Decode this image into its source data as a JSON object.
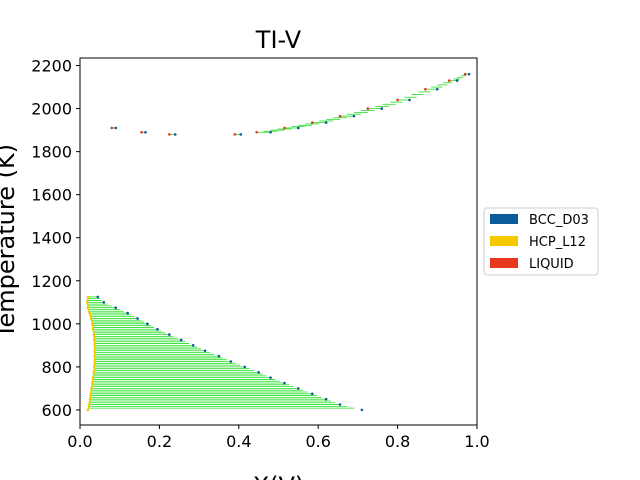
{
  "chart_data": {
    "type": "scatter",
    "title": "TI-V",
    "xlabel": "X(V)",
    "ylabel": "Temperature (K)",
    "xlim": [
      0.0,
      1.0
    ],
    "ylim": [
      530,
      2235
    ],
    "xticks": [
      0.0,
      0.2,
      0.4,
      0.6,
      0.8,
      1.0
    ],
    "xtick_labels": [
      "0.0",
      "0.2",
      "0.4",
      "0.6",
      "0.8",
      "1.0"
    ],
    "yticks": [
      600,
      800,
      1000,
      1200,
      1400,
      1600,
      1800,
      2000,
      2200
    ],
    "ytick_labels": [
      "600",
      "800",
      "1000",
      "1200",
      "1400",
      "1600",
      "1800",
      "2000",
      "2200"
    ],
    "grid": false,
    "legend_position": "outside-right",
    "legend": [
      {
        "label": "BCC_D03",
        "color": "#0a5a9c"
      },
      {
        "label": "HCP_L12",
        "color": "#f5c800"
      },
      {
        "label": "LIQUID",
        "color": "#e8391e"
      }
    ],
    "tieline_color": "#22dd22",
    "series": [
      {
        "name": "BCC_D03",
        "color": "#0a5a9c",
        "points": [
          [
            0.045,
            1125
          ],
          [
            0.06,
            1100
          ],
          [
            0.09,
            1075
          ],
          [
            0.12,
            1050
          ],
          [
            0.145,
            1025
          ],
          [
            0.17,
            1000
          ],
          [
            0.195,
            975
          ],
          [
            0.225,
            950
          ],
          [
            0.255,
            925
          ],
          [
            0.285,
            900
          ],
          [
            0.315,
            875
          ],
          [
            0.35,
            850
          ],
          [
            0.38,
            825
          ],
          [
            0.415,
            800
          ],
          [
            0.45,
            775
          ],
          [
            0.48,
            750
          ],
          [
            0.515,
            725
          ],
          [
            0.55,
            700
          ],
          [
            0.585,
            675
          ],
          [
            0.62,
            650
          ],
          [
            0.655,
            625
          ],
          [
            0.71,
            600
          ],
          [
            0.09,
            1910
          ],
          [
            0.165,
            1890
          ],
          [
            0.24,
            1880
          ],
          [
            0.405,
            1880
          ],
          [
            0.48,
            1890
          ],
          [
            0.55,
            1910
          ],
          [
            0.62,
            1935
          ],
          [
            0.69,
            1965
          ],
          [
            0.76,
            2000
          ],
          [
            0.83,
            2040
          ],
          [
            0.9,
            2090
          ],
          [
            0.95,
            2130
          ],
          [
            0.98,
            2160
          ]
        ]
      },
      {
        "name": "HCP_L12",
        "color": "#f5c800",
        "points": [
          [
            0.02,
            1125
          ],
          [
            0.018,
            1100
          ],
          [
            0.02,
            1075
          ],
          [
            0.024,
            1050
          ],
          [
            0.028,
            1025
          ],
          [
            0.031,
            1000
          ],
          [
            0.033,
            975
          ],
          [
            0.035,
            950
          ],
          [
            0.036,
            925
          ],
          [
            0.037,
            900
          ],
          [
            0.037,
            875
          ],
          [
            0.037,
            850
          ],
          [
            0.037,
            825
          ],
          [
            0.036,
            800
          ],
          [
            0.035,
            775
          ],
          [
            0.033,
            750
          ],
          [
            0.031,
            725
          ],
          [
            0.029,
            700
          ],
          [
            0.027,
            675
          ],
          [
            0.025,
            650
          ],
          [
            0.023,
            625
          ],
          [
            0.02,
            600
          ]
        ]
      },
      {
        "name": "LIQUID",
        "color": "#e8391e",
        "points": [
          [
            0.08,
            1910
          ],
          [
            0.155,
            1890
          ],
          [
            0.225,
            1880
          ],
          [
            0.39,
            1880
          ],
          [
            0.445,
            1890
          ],
          [
            0.515,
            1910
          ],
          [
            0.585,
            1935
          ],
          [
            0.655,
            1965
          ],
          [
            0.725,
            2000
          ],
          [
            0.8,
            2040
          ],
          [
            0.87,
            2090
          ],
          [
            0.93,
            2130
          ],
          [
            0.97,
            2160
          ]
        ]
      }
    ]
  }
}
